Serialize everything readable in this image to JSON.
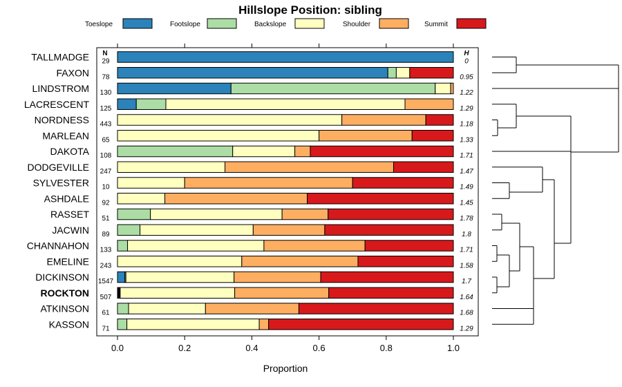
{
  "chart_data": {
    "type": "bar",
    "stacked": true,
    "orientation": "horizontal",
    "title": "Hillslope Position: sibling",
    "xlabel": "Proportion",
    "xlim": [
      0,
      1
    ],
    "xticks": [
      "0.0",
      "0.2",
      "0.4",
      "0.6",
      "0.8",
      "1.0"
    ],
    "n_header": "N",
    "h_header": "H",
    "legend": [
      {
        "name": "Toeslope",
        "color": "#2b83ba"
      },
      {
        "name": "Footslope",
        "color": "#abdda4"
      },
      {
        "name": "Backslope",
        "color": "#ffffbf"
      },
      {
        "name": "Shoulder",
        "color": "#fdae61"
      },
      {
        "name": "Summit",
        "color": "#d7191c"
      }
    ],
    "rows": [
      {
        "label": "TALLMADGE",
        "n": "29",
        "h": "0",
        "values": [
          1.0,
          0,
          0,
          0,
          0
        ]
      },
      {
        "label": "FAXON",
        "n": "78",
        "h": "0.95",
        "values": [
          0.805,
          0.025,
          0.04,
          0,
          0.13
        ]
      },
      {
        "label": "LINDSTROM",
        "n": "130",
        "h": "1.22",
        "values": [
          0.338,
          0.608,
          0.046,
          0.008,
          0
        ]
      },
      {
        "label": "LACRESCENT",
        "n": "125",
        "h": "1.29",
        "values": [
          0.056,
          0.088,
          0.712,
          0.144,
          0
        ]
      },
      {
        "label": "NORDNESS",
        "n": "443",
        "h": "1.18",
        "values": [
          0,
          0,
          0.668,
          0.25,
          0.082
        ]
      },
      {
        "label": "MARLEAN",
        "n": "65",
        "h": "1.33",
        "values": [
          0,
          0,
          0.6,
          0.277,
          0.123
        ]
      },
      {
        "label": "DAKOTA",
        "n": "108",
        "h": "1.71",
        "values": [
          0,
          0.343,
          0.185,
          0.046,
          0.426
        ]
      },
      {
        "label": "DODGEVILLE",
        "n": "247",
        "h": "1.47",
        "values": [
          0,
          0,
          0.32,
          0.502,
          0.178
        ]
      },
      {
        "label": "SYLVESTER",
        "n": "10",
        "h": "1.49",
        "values": [
          0,
          0,
          0.2,
          0.5,
          0.3
        ]
      },
      {
        "label": "ASHDALE",
        "n": "92",
        "h": "1.45",
        "values": [
          0,
          0,
          0.141,
          0.424,
          0.435
        ]
      },
      {
        "label": "RASSET",
        "n": "51",
        "h": "1.78",
        "values": [
          0,
          0.098,
          0.392,
          0.137,
          0.373
        ]
      },
      {
        "label": "JACWIN",
        "n": "89",
        "h": "1.8",
        "values": [
          0,
          0.067,
          0.337,
          0.213,
          0.383
        ]
      },
      {
        "label": "CHANNAHON",
        "n": "133",
        "h": "1.71",
        "values": [
          0,
          0.03,
          0.406,
          0.301,
          0.263
        ]
      },
      {
        "label": "EMELINE",
        "n": "243",
        "h": "1.58",
        "values": [
          0,
          0,
          0.37,
          0.346,
          0.284
        ]
      },
      {
        "label": "DICKINSON",
        "n": "1547",
        "h": "1.7",
        "values": [
          0.022,
          0.003,
          0.322,
          0.258,
          0.395
        ]
      },
      {
        "label": "ROCKTON",
        "n": "507",
        "h": "1.64",
        "values": [
          0.008,
          0,
          0.341,
          0.28,
          0.371
        ],
        "bold": true
      },
      {
        "label": "ATKINSON",
        "n": "61",
        "h": "1.68",
        "values": [
          0,
          0.033,
          0.229,
          0.278,
          0.46
        ]
      },
      {
        "label": "KASSON",
        "n": "71",
        "h": "1.29",
        "values": [
          0,
          0.028,
          0.394,
          0.028,
          0.55
        ]
      }
    ]
  }
}
